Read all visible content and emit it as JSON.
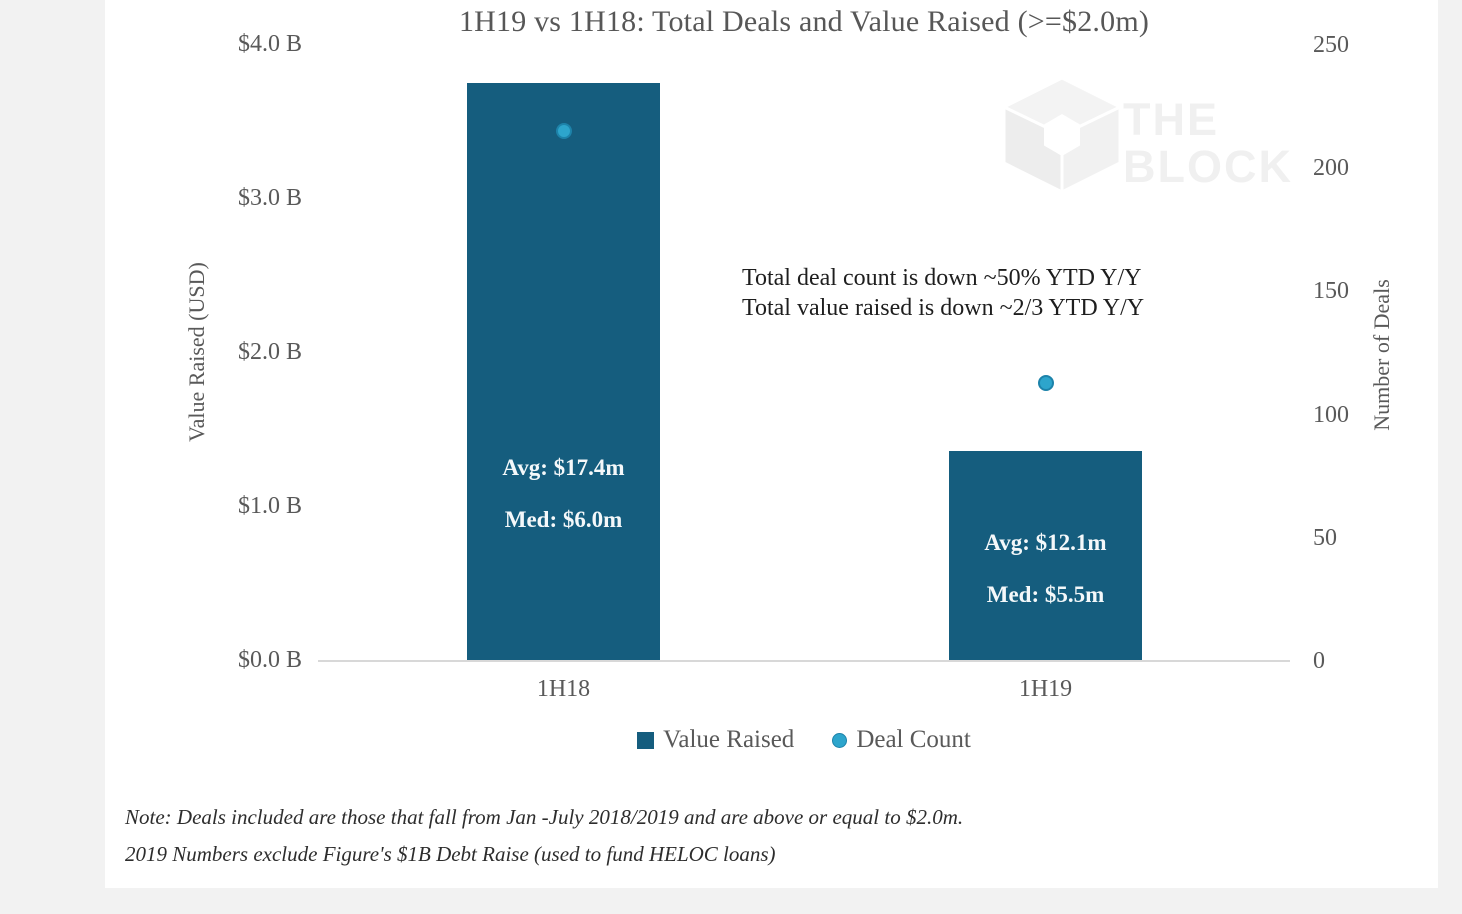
{
  "page": {
    "background": "#f2f2f2",
    "panel_background": "#ffffff"
  },
  "watermark": {
    "line1": "THE",
    "line2": "BLOCK",
    "color": "#f0f0f0"
  },
  "chart_data": {
    "type": "bar",
    "title": "1H19 vs 1H18: Total Deals and Value Raised (>=$2.0m)",
    "categories": [
      "1H18",
      "1H19"
    ],
    "series": [
      {
        "name": "Value Raised",
        "type": "bar",
        "axis": "left",
        "unit": "USD billions",
        "color": "#155d7e",
        "values": [
          3.75,
          1.36
        ]
      },
      {
        "name": "Deal Count",
        "type": "point",
        "axis": "right",
        "color": "#2da5cc",
        "values": [
          215,
          113
        ]
      }
    ],
    "bar_labels": [
      {
        "lines": [
          "Avg: $17.4m",
          "Med: $6.0m"
        ]
      },
      {
        "lines": [
          "Avg: $12.1m",
          "Med: $5.5m"
        ]
      }
    ],
    "left_axis": {
      "label": "Value Raised (USD)",
      "ticks": [
        "$4.0 B",
        "$3.0 B",
        "$2.0 B",
        "$1.0 B",
        "$0.0 B"
      ],
      "tick_values": [
        4,
        3,
        2,
        1,
        0
      ],
      "range": [
        0,
        4
      ]
    },
    "right_axis": {
      "label": "Number of Deals",
      "ticks": [
        "250",
        "200",
        "150",
        "100",
        "50",
        "0"
      ],
      "tick_values": [
        250,
        200,
        150,
        100,
        50,
        0
      ],
      "range": [
        0,
        250
      ]
    },
    "annotation": [
      "Total deal count is down ~50% YTD Y/Y",
      "Total value raised is down ~2/3 YTD Y/Y"
    ],
    "legend": [
      {
        "label": "Value Raised",
        "marker": "square",
        "color": "#155d7e"
      },
      {
        "label": "Deal Count",
        "marker": "circle",
        "color": "#2da5cc"
      }
    ],
    "notes": [
      "Note: Deals included are those that fall from Jan -July 2018/2019 and are above or equal to $2.0m.",
      "2019 Numbers exclude Figure's $1B Debt Raise (used to fund HELOC loans)"
    ],
    "grid": "off",
    "legend_position": "bottom-center"
  }
}
